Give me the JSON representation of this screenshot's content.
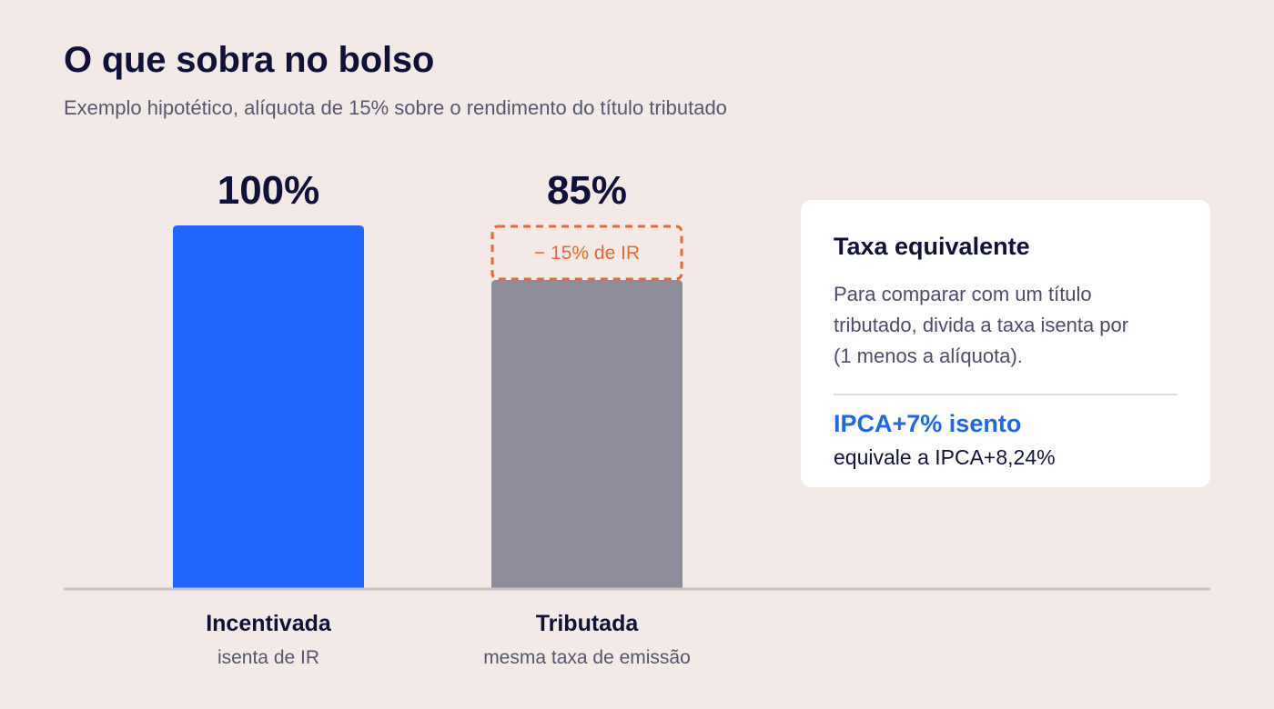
{
  "header": {
    "title": "O que sobra no bolso",
    "subtitle": "Exemplo hipotético, alíquota de 15% sobre o rendimento do título tributado"
  },
  "chart_data": {
    "type": "bar",
    "categories": [
      "Incentivada",
      "Tributada"
    ],
    "category_notes": [
      "isenta de IR",
      "mesma taxa de emissão"
    ],
    "values": [
      100,
      85
    ],
    "value_labels": [
      "100%",
      "85%"
    ],
    "unit": "%",
    "ylim": [
      0,
      100
    ],
    "grid": false,
    "annotation": {
      "category": "Tributada",
      "from": 85,
      "to": 100,
      "label": "− 15% de IR",
      "style": "dashed"
    },
    "colors": {
      "Incentivada": "#1f66ff",
      "Tributada": "#8e8c9a",
      "annotation": "#e8692f",
      "axis": "#c9c3c3"
    }
  },
  "info_card": {
    "title": "Taxa equivalente",
    "body": "Para comparar com um título tributado, divida a taxa isenta por (1 menos a alíquota).",
    "highlight": "IPCA+7% isento",
    "note": "equivale a IPCA+8,24%"
  }
}
